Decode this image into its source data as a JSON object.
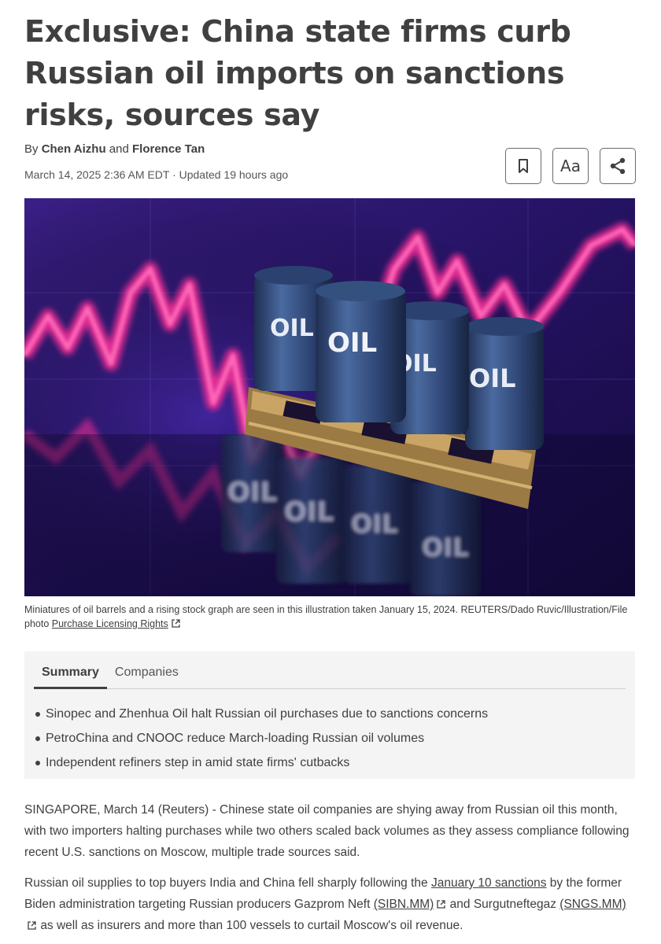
{
  "article": {
    "headline": "Exclusive: China state firms curb Russian oil imports on sanctions risks, sources say",
    "byline_prefix": "By",
    "author_1": "Chen Aizhu",
    "byline_and": "and",
    "author_2": "Florence Tan",
    "dateline": "March 14, 2025 2:36 AM EDT · Updated 19 hours ago"
  },
  "tools": {
    "text_size_label": "Aa",
    "icons": [
      "bookmark-icon",
      "text-size-icon",
      "share-icon"
    ]
  },
  "hero": {
    "barrel_label": "OIL"
  },
  "caption": {
    "text": "Miniatures of oil barrels and a rising stock graph are seen in this illustration taken January 15, 2024. REUTERS/Dado Ruvic/Illustration/File photo",
    "link": "Purchase Licensing Rights"
  },
  "summary": {
    "tabs": [
      {
        "label": "Summary",
        "active": true
      },
      {
        "label": "Companies",
        "active": false
      }
    ],
    "points": [
      "Sinopec and Zhenhua Oil halt Russian oil purchases due to sanctions concerns",
      "PetroChina and CNOOC reduce March-loading Russian oil volumes",
      "Independent refiners step in amid state firms' cutbacks"
    ]
  },
  "body": {
    "p1": "SINGAPORE, March 14 (Reuters) - Chinese state oil companies are shying away from Russian oil this month, with two importers halting purchases while two others scaled back volumes as they assess compliance following recent U.S. sanctions on Moscow, multiple trade sources said.",
    "p2_a": "Russian oil supplies to top buyers India and China fell sharply following the",
    "p2_link1": "January 10 sanctions",
    "p2_b": "by the former Biden administration targeting Russian producers Gazprom Neft",
    "p2_link2": "(SIBN.MM)",
    "p2_c": "and Surgutneftegaz",
    "p2_link3": "(SNGS.MM)",
    "p2_d": "as well as insurers and more than 100 vessels to curtail Moscow's oil revenue."
  },
  "colors": {
    "text": "#404040",
    "summary_bg": "#f4f4f4",
    "graph_pink": "#ff3aa0",
    "barrel_blue": "#34507e",
    "pallet": "#b8945a"
  }
}
